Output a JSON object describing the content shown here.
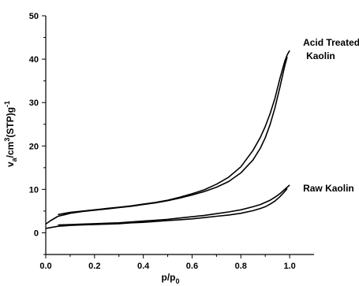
{
  "chart_data": {
    "type": "line",
    "xlabel": "p/p0",
    "ylabel": "va/cm3(STP)g-1",
    "xlim": [
      0.0,
      1.1
    ],
    "ylim": [
      -5,
      50
    ],
    "x_ticks": [
      "0.0",
      "0.2",
      "0.4",
      "0.6",
      "0.8",
      "1.0"
    ],
    "y_ticks": [
      "0",
      "10",
      "20",
      "30",
      "40",
      "50"
    ],
    "grid": false,
    "series": [
      {
        "name": "Acid Treated Kaolin",
        "label_lines": [
          "Acid Treated",
          "Kaolin"
        ],
        "color": "#000000",
        "adsorption": {
          "x": [
            0.0,
            0.02,
            0.05,
            0.08,
            0.1,
            0.15,
            0.2,
            0.25,
            0.3,
            0.35,
            0.4,
            0.45,
            0.5,
            0.55,
            0.6,
            0.65,
            0.7,
            0.75,
            0.8,
            0.85,
            0.88,
            0.9,
            0.92,
            0.94,
            0.96,
            0.98,
            0.99
          ],
          "y": [
            2.0,
            2.8,
            3.8,
            4.2,
            4.5,
            4.9,
            5.2,
            5.5,
            5.8,
            6.1,
            6.5,
            6.9,
            7.4,
            8.0,
            8.7,
            9.5,
            10.5,
            11.8,
            13.8,
            16.8,
            19.5,
            21.9,
            25.0,
            28.8,
            33.5,
            38.5,
            40.5
          ]
        },
        "desorption": {
          "x": [
            1.0,
            0.99,
            0.98,
            0.96,
            0.94,
            0.92,
            0.9,
            0.88,
            0.85,
            0.8,
            0.75,
            0.7,
            0.65,
            0.6,
            0.55,
            0.5,
            0.45,
            0.4,
            0.35,
            0.3,
            0.25,
            0.2,
            0.15,
            0.1,
            0.05
          ],
          "y": [
            42.0,
            41.0,
            39.5,
            35.5,
            31.0,
            27.5,
            24.5,
            22.0,
            19.0,
            15.2,
            12.8,
            11.2,
            9.9,
            9.0,
            8.2,
            7.5,
            7.0,
            6.6,
            6.2,
            5.9,
            5.6,
            5.3,
            5.0,
            4.7,
            4.2
          ]
        }
      },
      {
        "name": "Raw Kaolin",
        "label_lines": [
          "Raw Kaolin"
        ],
        "color": "#000000",
        "adsorption": {
          "x": [
            0.0,
            0.02,
            0.05,
            0.08,
            0.1,
            0.15,
            0.2,
            0.25,
            0.3,
            0.35,
            0.4,
            0.45,
            0.5,
            0.55,
            0.6,
            0.65,
            0.7,
            0.75,
            0.8,
            0.85,
            0.88,
            0.9,
            0.92,
            0.94,
            0.96,
            0.98,
            0.99
          ],
          "y": [
            1.0,
            1.2,
            1.5,
            1.6,
            1.7,
            1.8,
            1.9,
            2.0,
            2.1,
            2.3,
            2.4,
            2.6,
            2.8,
            3.0,
            3.2,
            3.5,
            3.8,
            4.1,
            4.5,
            5.1,
            5.6,
            6.0,
            6.6,
            7.3,
            8.3,
            9.5,
            10.2
          ]
        },
        "desorption": {
          "x": [
            1.0,
            0.99,
            0.98,
            0.96,
            0.94,
            0.92,
            0.9,
            0.88,
            0.85,
            0.8,
            0.75,
            0.7,
            0.65,
            0.6,
            0.55,
            0.5,
            0.45,
            0.4,
            0.35,
            0.3,
            0.25,
            0.2,
            0.15,
            0.1,
            0.05
          ],
          "y": [
            11.0,
            10.5,
            10.0,
            9.0,
            8.2,
            7.5,
            7.0,
            6.5,
            6.0,
            5.3,
            4.8,
            4.4,
            4.0,
            3.7,
            3.4,
            3.1,
            2.9,
            2.7,
            2.5,
            2.3,
            2.2,
            2.1,
            2.0,
            1.9,
            1.8
          ]
        }
      }
    ]
  }
}
